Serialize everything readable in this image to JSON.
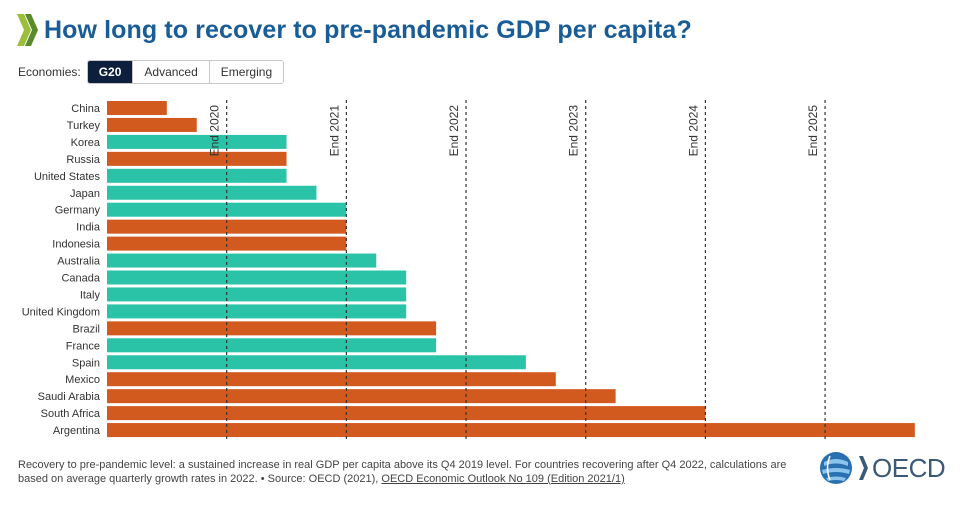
{
  "title": "How long to recover to pre-pandemic GDP per capita?",
  "filters": {
    "label": "Economies:",
    "options": [
      "G20",
      "Advanced",
      "Emerging"
    ],
    "selected": "G20"
  },
  "colors": {
    "title": "#1a5c96",
    "advanced": "#2bc3a7",
    "emerging": "#d35a1f",
    "active_tab": "#0d1f3c"
  },
  "chart_data": {
    "type": "bar",
    "orientation": "horizontal",
    "unit": "quarters after Q4 2019",
    "categories": [
      "China",
      "Turkey",
      "Korea",
      "Russia",
      "United States",
      "Japan",
      "Germany",
      "India",
      "Indonesia",
      "Australia",
      "Canada",
      "Italy",
      "United Kingdom",
      "Brazil",
      "France",
      "Spain",
      "Mexico",
      "Saudi Arabia",
      "South Africa",
      "Argentina"
    ],
    "values": [
      2,
      3,
      6,
      6,
      6,
      7,
      8,
      8,
      8,
      9,
      10,
      10,
      10,
      11,
      11,
      14,
      15,
      17,
      20,
      27
    ],
    "groups": [
      "emerging",
      "emerging",
      "advanced",
      "emerging",
      "advanced",
      "advanced",
      "advanced",
      "emerging",
      "emerging",
      "advanced",
      "advanced",
      "advanced",
      "advanced",
      "emerging",
      "advanced",
      "advanced",
      "emerging",
      "emerging",
      "emerging",
      "emerging"
    ],
    "reference_lines": [
      {
        "label": "End 2020",
        "value": 4
      },
      {
        "label": "End 2021",
        "value": 8
      },
      {
        "label": "End 2022",
        "value": 12
      },
      {
        "label": "End 2023",
        "value": 16
      },
      {
        "label": "End 2024",
        "value": 20
      },
      {
        "label": "End 2025",
        "value": 24
      }
    ],
    "xlim": [
      0,
      27
    ]
  },
  "footnote": {
    "text": "Recovery to pre-pandemic level: a sustained increase in real GDP per capita above its Q4 2019 level. For countries recovering after Q4 2022, calculations are based on average quarterly growth rates in 2022. • Source: OECD (2021), ",
    "link": "OECD Economic Outlook No 109 (Edition 2021/1)"
  },
  "logo": {
    "text": "OECD"
  }
}
